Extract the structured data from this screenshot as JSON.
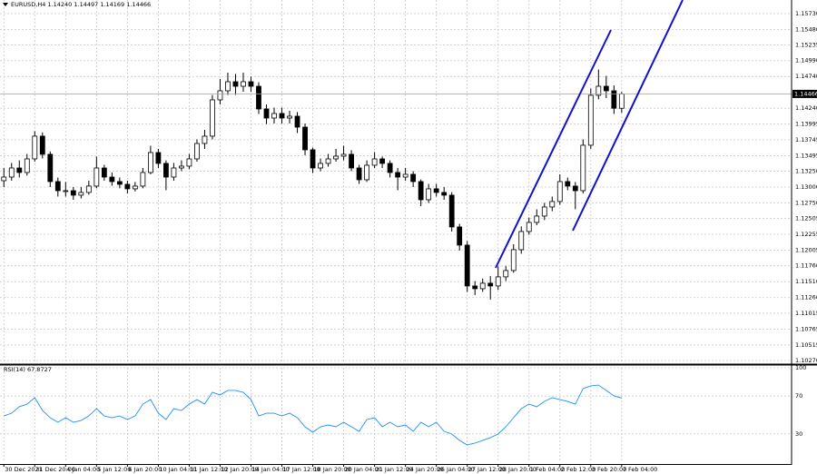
{
  "chart_data": [
    {
      "type": "candlestick",
      "title": "EURUSD,H4 1.14240 1.14497 1.14169 1.14466",
      "up_color": "#ffffff",
      "down_color": "#000000",
      "edge_color": "#000000",
      "open": [
        1.131,
        1.13157,
        1.133,
        1.13229,
        1.13443,
        1.13801,
        1.13515,
        1.13086,
        1.12943,
        1.12943,
        1.12872,
        1.12915,
        1.13015,
        1.133,
        1.13157,
        1.13086,
        1.13043,
        1.12972,
        1.13015,
        1.13229,
        1.13543,
        1.13372,
        1.13157,
        1.133,
        1.13329,
        1.13443,
        1.13686,
        1.13801,
        1.14372,
        1.14515,
        1.14658,
        1.14586,
        1.14658,
        1.14586,
        1.14229,
        1.14086,
        1.14158,
        1.14086,
        1.14115,
        1.13943,
        1.13586,
        1.133,
        1.13372,
        1.13443,
        1.13486,
        1.13515,
        1.133,
        1.13115,
        1.13343,
        1.13443,
        1.13372,
        1.13229,
        1.13157,
        1.132,
        1.13086,
        1.128,
        1.12972,
        1.12915,
        1.12872,
        1.12372,
        1.12086,
        1.11443,
        1.114,
        1.11486,
        1.11443,
        1.11586,
        1.11686,
        1.12014,
        1.123,
        1.12443,
        1.12543,
        1.12686,
        1.12772,
        1.13086,
        1.13015,
        1.12943,
        1.13658,
        1.14444,
        1.14586,
        1.14515,
        1.1424
      ],
      "high": [
        1.133,
        1.1338,
        1.1342,
        1.1352,
        1.1388,
        1.1386,
        1.1356,
        1.1315,
        1.1308,
        1.13,
        1.13,
        1.131,
        1.1348,
        1.1335,
        1.1323,
        1.1315,
        1.131,
        1.1308,
        1.133,
        1.1365,
        1.136,
        1.1342,
        1.1338,
        1.1342,
        1.1352,
        1.1375,
        1.139,
        1.1445,
        1.147,
        1.148,
        1.1478,
        1.148,
        1.1474,
        1.1465,
        1.143,
        1.1425,
        1.1425,
        1.142,
        1.1418,
        1.14,
        1.1362,
        1.1345,
        1.1352,
        1.136,
        1.1365,
        1.1358,
        1.1335,
        1.1342,
        1.1355,
        1.1348,
        1.1342,
        1.133,
        1.133,
        1.1325,
        1.1312,
        1.1305,
        1.1305,
        1.13,
        1.1292,
        1.1242,
        1.1215,
        1.1152,
        1.1156,
        1.116,
        1.1175,
        1.1176,
        1.121,
        1.1238,
        1.1252,
        1.1265,
        1.1275,
        1.1285,
        1.132,
        1.1315,
        1.1308,
        1.1375,
        1.1455,
        1.1485,
        1.1475,
        1.146,
        1.14497
      ],
      "low": [
        1.13,
        1.131,
        1.1315,
        1.1318,
        1.134,
        1.1345,
        1.13,
        1.1285,
        1.1285,
        1.128,
        1.1282,
        1.1288,
        1.1298,
        1.131,
        1.1302,
        1.1298,
        1.129,
        1.1293,
        1.1298,
        1.132,
        1.133,
        1.1295,
        1.131,
        1.1325,
        1.1328,
        1.134,
        1.136,
        1.1375,
        1.143,
        1.1445,
        1.1445,
        1.145,
        1.145,
        1.1415,
        1.1399,
        1.14,
        1.14,
        1.14,
        1.1385,
        1.135,
        1.1322,
        1.1325,
        1.1332,
        1.134,
        1.1342,
        1.1325,
        1.1305,
        1.1308,
        1.133,
        1.133,
        1.1315,
        1.1295,
        1.131,
        1.13,
        1.127,
        1.1275,
        1.1285,
        1.128,
        1.123,
        1.12,
        1.1135,
        1.113,
        1.1135,
        1.1123,
        1.1138,
        1.1152,
        1.1165,
        1.1195,
        1.1225,
        1.124,
        1.1248,
        1.1262,
        1.1272,
        1.1295,
        1.1265,
        1.129,
        1.136,
        1.1438,
        1.144,
        1.1415,
        1.14169
      ],
      "close": [
        1.13157,
        1.133,
        1.13229,
        1.13443,
        1.13801,
        1.13515,
        1.13086,
        1.12943,
        1.12943,
        1.12872,
        1.12915,
        1.13015,
        1.133,
        1.13157,
        1.13086,
        1.13043,
        1.12972,
        1.13015,
        1.13229,
        1.13543,
        1.13372,
        1.13157,
        1.133,
        1.13329,
        1.13443,
        1.13686,
        1.13801,
        1.14372,
        1.14515,
        1.14658,
        1.14586,
        1.14658,
        1.14586,
        1.14229,
        1.14086,
        1.14158,
        1.14086,
        1.14115,
        1.13943,
        1.13586,
        1.133,
        1.13372,
        1.13443,
        1.13486,
        1.13515,
        1.133,
        1.13115,
        1.13343,
        1.13443,
        1.13372,
        1.13229,
        1.13157,
        1.132,
        1.13086,
        1.128,
        1.12972,
        1.12915,
        1.12872,
        1.12372,
        1.12086,
        1.11443,
        1.114,
        1.11486,
        1.11443,
        1.11586,
        1.11686,
        1.12014,
        1.123,
        1.12443,
        1.12543,
        1.12686,
        1.12772,
        1.13086,
        1.13015,
        1.12943,
        1.13658,
        1.14444,
        1.14586,
        1.14515,
        1.1424,
        1.14466
      ],
      "last_price": 1.14466,
      "xlim": [
        -0.5,
        102
      ],
      "ylim": [
        1.10227,
        1.15944
      ],
      "grid": true,
      "yticks": [
        {
          "value": 1.1573,
          "label": "1.15730"
        },
        {
          "value": 1.1548,
          "label": "1.15480"
        },
        1.15235,
        {
          "value": 1.1499,
          "label": "1.14990"
        },
        {
          "value": 1.1474,
          "label": "1.14740"
        },
        {
          "value": 1.1424,
          "label": "1.14240"
        },
        1.13995,
        1.13745,
        1.13495,
        {
          "value": 1.1325,
          "label": "1.13250"
        },
        {
          "value": 1.13,
          "label": "1.13000"
        },
        {
          "value": 1.1275,
          "label": "1.12750"
        },
        1.12505,
        1.12255,
        1.12005,
        {
          "value": 1.1176,
          "label": "1.11760"
        },
        {
          "value": 1.1151,
          "label": "1.11510"
        },
        {
          "value": 1.1126,
          "label": "1.11260"
        },
        1.11015,
        1.10765,
        1.10515,
        {
          "value": 1.1027,
          "label": "1.10270"
        }
      ]
    },
    {
      "type": "line",
      "title": "RSI(14) 67.8727",
      "color": "#1e90ff",
      "values": [
        49.0,
        51.9,
        58.7,
        61.5,
        68.3,
        54.8,
        47.1,
        42.3,
        47.1,
        42.3,
        44.2,
        49.0,
        56.7,
        49.0,
        47.1,
        49.0,
        45.2,
        49.0,
        61.5,
        66.3,
        51.9,
        45.2,
        56.7,
        54.8,
        61.5,
        66.3,
        61.5,
        74.0,
        71.2,
        76.0,
        76.0,
        74.0,
        66.3,
        49.0,
        51.9,
        51.9,
        49.0,
        51.9,
        47.1,
        37.5,
        31.7,
        37.5,
        39.4,
        37.5,
        42.3,
        37.5,
        32.7,
        45.2,
        47.1,
        37.5,
        42.3,
        37.5,
        39.4,
        32.7,
        42.3,
        37.5,
        42.3,
        32.7,
        29.8,
        23.1,
        18.3,
        20.2,
        23.1,
        26.0,
        29.8,
        37.5,
        47.1,
        56.7,
        61.5,
        58.7,
        64.4,
        68.3,
        66.3,
        64.4,
        61.5,
        77.9,
        80.8,
        81.7,
        76.0,
        70.2,
        67.8727
      ],
      "xlim": [
        -0.5,
        102
      ],
      "ylim": [
        0,
        100
      ],
      "yticks": [
        100,
        70,
        30
      ],
      "grid": true,
      "xticks": [
        {
          "value": 0,
          "label": "30 Dec 2021"
        },
        {
          "value": 4,
          "label": "31 Dec 20:00"
        },
        {
          "value": 8,
          "label": "4 Jan 04:00"
        },
        {
          "value": 12,
          "label": "5 Jan 12:00"
        },
        {
          "value": 16,
          "label": "6 Jan 20:00"
        },
        {
          "value": 20,
          "label": "10 Jan 04:00"
        },
        {
          "value": 24,
          "label": "11 Jan 12:00"
        },
        {
          "value": 28,
          "label": "12 Jan 20:00"
        },
        {
          "value": 32,
          "label": "14 Jan 04:00"
        },
        {
          "value": 36,
          "label": "17 Jan 12:00"
        },
        {
          "value": 40,
          "label": "18 Jan 20:00"
        },
        {
          "value": 44,
          "label": "20 Jan 04:00"
        },
        {
          "value": 48,
          "label": "21 Jan 12:00"
        },
        {
          "value": 52,
          "label": "24 Jan 20:00"
        },
        {
          "value": 56,
          "label": "26 Jan 04:00"
        },
        {
          "value": 60,
          "label": "27 Jan 12:00"
        },
        {
          "value": 64,
          "label": "28 Jan 20:00"
        },
        {
          "value": 68,
          "label": "1 Feb 04:00"
        },
        {
          "value": 72,
          "label": "2 Feb 12:00"
        },
        {
          "value": 76,
          "label": "3 Feb 20:00"
        },
        {
          "value": 80,
          "label": "7 Feb 04:00"
        }
      ]
    }
  ]
}
